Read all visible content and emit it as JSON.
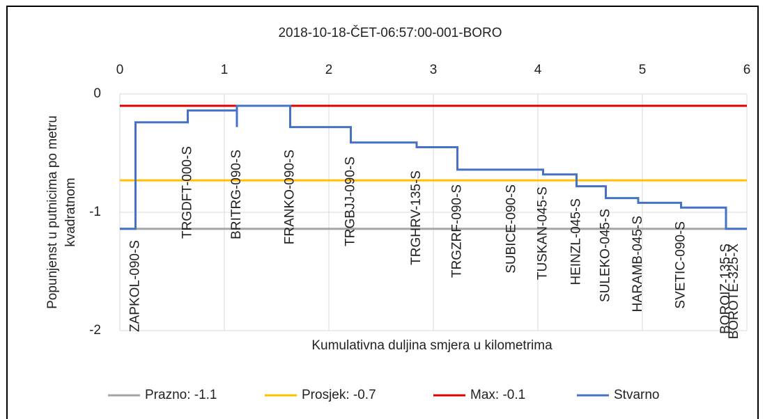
{
  "chart_data": {
    "type": "line",
    "title": "2018-10-18-ČET-06:57:00-001-BORO",
    "x_label": "Kumulativna duljina smjera u kilometrima",
    "y_label": [
      "Popunjenst u putnicima po metru",
      "kvadratnom"
    ],
    "xlim": [
      0,
      6
    ],
    "xticks": [
      0,
      1,
      2,
      3,
      4,
      5,
      6
    ],
    "ylim": [
      -2,
      0
    ],
    "yticks": [
      0,
      -1,
      -2
    ],
    "grid": true,
    "legend": "bottom",
    "series": [
      {
        "name": "Prazno: -1.1",
        "color": "#a5a5a5",
        "x": [
          0,
          6
        ],
        "values": [
          -1.14,
          -1.14
        ]
      },
      {
        "name": "Prosjek: -0.7",
        "color": "#ffc000",
        "x": [
          0,
          6
        ],
        "values": [
          -0.73,
          -0.73
        ]
      },
      {
        "name": "Max: -0.1",
        "color": "#e00000",
        "x": [
          0,
          6
        ],
        "values": [
          -0.1,
          -0.1
        ]
      },
      {
        "name": "Stvarno",
        "color": "#4472c4",
        "x": [
          0,
          0.15,
          0.15,
          0.65,
          0.65,
          1.12,
          1.12,
          1.12,
          1.63,
          1.63,
          2.21,
          2.21,
          2.84,
          2.84,
          3.23,
          3.23,
          4.05,
          4.05,
          4.37,
          4.37,
          4.65,
          4.65,
          4.96,
          4.96,
          5.37,
          5.37,
          5.8,
          5.8,
          6
        ],
        "values": [
          -1.14,
          -1.14,
          -0.24,
          -0.24,
          -0.14,
          -0.14,
          -0.28,
          -0.1,
          -0.1,
          -0.28,
          -0.28,
          -0.41,
          -0.41,
          -0.45,
          -0.45,
          -0.64,
          -0.64,
          -0.68,
          -0.68,
          -0.78,
          -0.78,
          -0.88,
          -0.88,
          -0.92,
          -0.92,
          -0.96,
          -0.96,
          -1.14,
          -1.14
        ]
      }
    ],
    "stops": {
      "names": [
        "ZAPKOL-090-S",
        "TRGDFT-000-S",
        "BRITRG-090-S",
        "FRANKO-090-S",
        "TRGBJJ-090-S",
        "TRGHRV-135-S",
        "TRGZRF-090-S",
        "SUBICE-090-S",
        "TUSKAN-045-S",
        "HEINZL-045-S",
        "SULEKO-045-S",
        "HARAMB-045-S",
        "SVETIC-090-S",
        "BOROIZ-135-S",
        "BOROTE-325-X"
      ],
      "x": [
        0.15,
        0.65,
        1.12,
        1.63,
        2.21,
        2.84,
        3.23,
        3.75,
        4.05,
        4.37,
        4.65,
        4.96,
        5.37,
        5.8,
        5.88
      ]
    }
  }
}
